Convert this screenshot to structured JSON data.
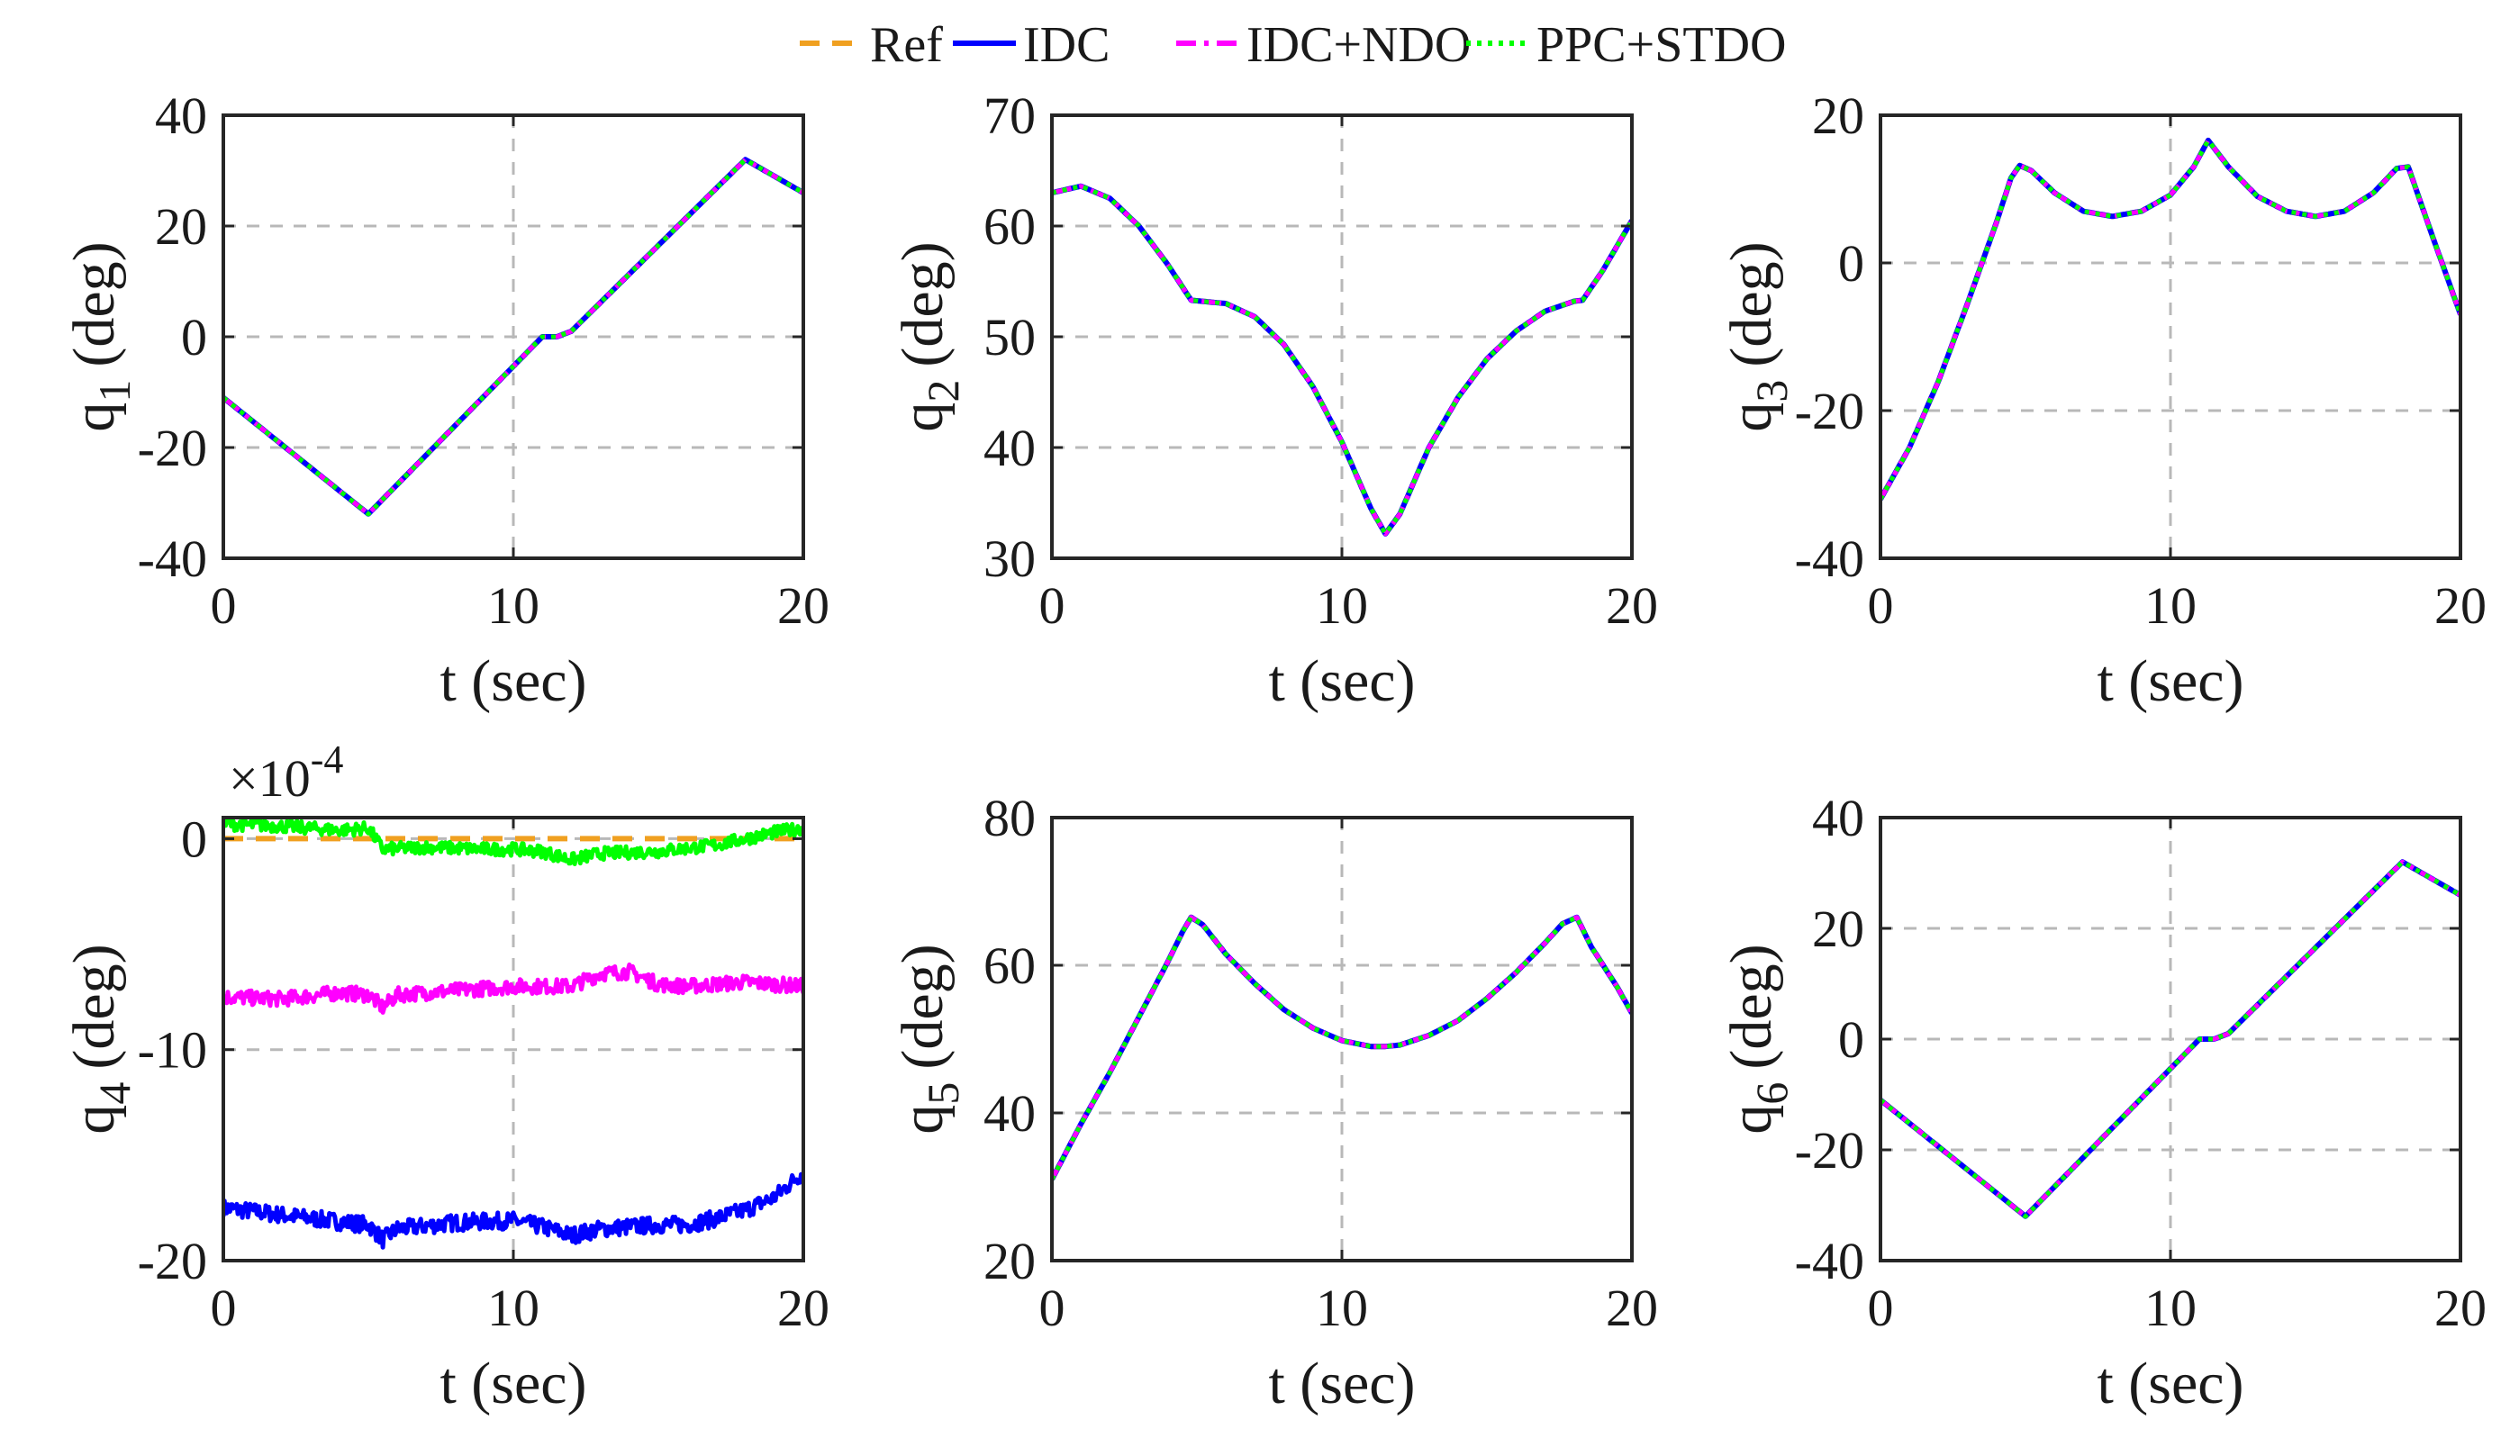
{
  "legend": {
    "position": "top-center",
    "entries": [
      {
        "label": "Ref",
        "color": "#F0A020",
        "dash": "dashed"
      },
      {
        "label": "IDC",
        "color": "#0000FF",
        "dash": "solid"
      },
      {
        "label": "IDC+NDO",
        "color": "#FF00FF",
        "dash": "dashdot"
      },
      {
        "label": "PPC+STDO",
        "color": "#00FF00",
        "dash": "dotted"
      }
    ]
  },
  "chart_data": [
    {
      "type": "line",
      "id": "q1",
      "ylabel": "q",
      "ylabel_sub": "1",
      "ylabel_unit": "(deg)",
      "xlabel": "t (sec)",
      "xlim": [
        0,
        20
      ],
      "ylim": [
        -40,
        40
      ],
      "xticks": [
        "0",
        "10",
        "20"
      ],
      "xtick_values": [
        0,
        10,
        20
      ],
      "yticks": [
        "-40",
        "-20",
        "0",
        "20",
        "40"
      ],
      "ytick_values": [
        -40,
        -20,
        0,
        20,
        40
      ],
      "grid": true,
      "series": [
        {
          "name": "Ref",
          "x": [
            0,
            5,
            11,
            11.5,
            12,
            18,
            20
          ],
          "y": [
            -11,
            -32,
            0,
            0,
            1,
            32,
            26
          ]
        },
        {
          "name": "IDC",
          "x": [
            0,
            5,
            11,
            11.5,
            12,
            18,
            20
          ],
          "y": [
            -11,
            -32,
            0,
            0,
            1,
            32,
            26
          ]
        },
        {
          "name": "IDC+NDO",
          "x": [
            0,
            5,
            11,
            11.5,
            12,
            18,
            20
          ],
          "y": [
            -11,
            -32,
            0,
            0,
            1,
            32,
            26
          ]
        },
        {
          "name": "PPC+STDO",
          "x": [
            0,
            5,
            11,
            11.5,
            12,
            18,
            20
          ],
          "y": [
            -11,
            -32,
            0,
            0,
            1,
            32,
            26
          ]
        }
      ]
    },
    {
      "type": "line",
      "id": "q2",
      "ylabel": "q",
      "ylabel_sub": "2",
      "ylabel_unit": "(deg)",
      "xlabel": "t (sec)",
      "xlim": [
        0,
        20
      ],
      "ylim": [
        30,
        70
      ],
      "xticks": [
        "0",
        "10",
        "20"
      ],
      "xtick_values": [
        0,
        10,
        20
      ],
      "yticks": [
        "30",
        "40",
        "50",
        "60",
        "70"
      ],
      "ytick_values": [
        30,
        40,
        50,
        60,
        70
      ],
      "grid": true,
      "series": [
        {
          "name": "Ref",
          "x": [
            0,
            1,
            2,
            3,
            4,
            4.8,
            6,
            7,
            8,
            9,
            10,
            11,
            11.5,
            12,
            13,
            14,
            15,
            16,
            17,
            18,
            18.3,
            19,
            20
          ],
          "y": [
            63,
            63.6,
            62.5,
            60,
            56.5,
            53.3,
            53,
            51.8,
            49.3,
            45.5,
            40.5,
            34.5,
            32.2,
            34,
            40,
            44.5,
            48,
            50.5,
            52.3,
            53.2,
            53.3,
            56,
            60.5
          ]
        },
        {
          "name": "IDC",
          "x": [
            0,
            1,
            2,
            3,
            4,
            4.8,
            6,
            7,
            8,
            9,
            10,
            11,
            11.5,
            12,
            13,
            14,
            15,
            16,
            17,
            18,
            18.3,
            19,
            20
          ],
          "y": [
            63,
            63.6,
            62.5,
            60,
            56.5,
            53.3,
            53,
            51.8,
            49.3,
            45.5,
            40.5,
            34.5,
            32.2,
            34,
            40,
            44.5,
            48,
            50.5,
            52.3,
            53.2,
            53.3,
            56,
            60.5
          ]
        },
        {
          "name": "IDC+NDO",
          "x": [
            0,
            1,
            2,
            3,
            4,
            4.8,
            6,
            7,
            8,
            9,
            10,
            11,
            11.5,
            12,
            13,
            14,
            15,
            16,
            17,
            18,
            18.3,
            19,
            20
          ],
          "y": [
            63,
            63.6,
            62.5,
            60,
            56.5,
            53.3,
            53,
            51.8,
            49.3,
            45.5,
            40.5,
            34.5,
            32.2,
            34,
            40,
            44.5,
            48,
            50.5,
            52.3,
            53.2,
            53.3,
            56,
            60.5
          ]
        },
        {
          "name": "PPC+STDO",
          "x": [
            0,
            1,
            2,
            3,
            4,
            4.8,
            6,
            7,
            8,
            9,
            10,
            11,
            11.5,
            12,
            13,
            14,
            15,
            16,
            17,
            18,
            18.3,
            19,
            20
          ],
          "y": [
            63,
            63.6,
            62.5,
            60,
            56.5,
            53.3,
            53,
            51.8,
            49.3,
            45.5,
            40.5,
            34.5,
            32.2,
            34,
            40,
            44.5,
            48,
            50.5,
            52.3,
            53.2,
            53.3,
            56,
            60.5
          ]
        }
      ]
    },
    {
      "type": "line",
      "id": "q3",
      "ylabel": "q",
      "ylabel_sub": "3",
      "ylabel_unit": "(deg)",
      "xlabel": "t (sec)",
      "xlim": [
        0,
        20
      ],
      "ylim": [
        -40,
        20
      ],
      "xticks": [
        "0",
        "10",
        "20"
      ],
      "xtick_values": [
        0,
        10,
        20
      ],
      "yticks": [
        "-40",
        "-20",
        "0",
        "20"
      ],
      "ytick_values": [
        -40,
        -20,
        0,
        20
      ],
      "grid": true,
      "series": [
        {
          "name": "Ref",
          "x": [
            0,
            1,
            2,
            3,
            4,
            4.5,
            4.8,
            5.2,
            6,
            7,
            8,
            9,
            10,
            10.8,
            11.3,
            12,
            13,
            14,
            15,
            16,
            17,
            17.8,
            18.2,
            19,
            20
          ],
          "y": [
            -32,
            -25,
            -16,
            -5.5,
            5.5,
            11.5,
            13.2,
            12.5,
            9.5,
            7,
            6.3,
            7,
            9.2,
            13,
            16.6,
            13,
            9,
            7,
            6.3,
            7,
            9.5,
            12.8,
            13,
            4,
            -7
          ]
        },
        {
          "name": "IDC",
          "x": [
            0,
            1,
            2,
            3,
            4,
            4.5,
            4.8,
            5.2,
            6,
            7,
            8,
            9,
            10,
            10.8,
            11.3,
            12,
            13,
            14,
            15,
            16,
            17,
            17.8,
            18.2,
            19,
            20
          ],
          "y": [
            -32,
            -25,
            -16,
            -5.5,
            5.5,
            11.5,
            13.2,
            12.5,
            9.5,
            7,
            6.3,
            7,
            9.2,
            13,
            16.6,
            13,
            9,
            7,
            6.3,
            7,
            9.5,
            12.8,
            13,
            4,
            -7
          ]
        },
        {
          "name": "IDC+NDO",
          "x": [
            0,
            1,
            2,
            3,
            4,
            4.5,
            4.8,
            5.2,
            6,
            7,
            8,
            9,
            10,
            10.8,
            11.3,
            12,
            13,
            14,
            15,
            16,
            17,
            17.8,
            18.2,
            19,
            20
          ],
          "y": [
            -32,
            -25,
            -16,
            -5.5,
            5.5,
            11.5,
            13.2,
            12.5,
            9.5,
            7,
            6.3,
            7,
            9.2,
            13,
            16.6,
            13,
            9,
            7,
            6.3,
            7,
            9.5,
            12.8,
            13,
            4,
            -7
          ]
        },
        {
          "name": "PPC+STDO",
          "x": [
            0,
            1,
            2,
            3,
            4,
            4.5,
            4.8,
            5.2,
            6,
            7,
            8,
            9,
            10,
            10.8,
            11.3,
            12,
            13,
            14,
            15,
            16,
            17,
            17.8,
            18.2,
            19,
            20
          ],
          "y": [
            -32,
            -25,
            -16,
            -5.5,
            5.5,
            11.5,
            13.2,
            12.5,
            9.5,
            7,
            6.3,
            7,
            9.2,
            13,
            16.6,
            13,
            9,
            7,
            6.3,
            7,
            9.5,
            12.8,
            13,
            4,
            -7
          ]
        }
      ]
    },
    {
      "type": "line",
      "id": "q4",
      "ylabel": "q",
      "ylabel_sub": "4",
      "ylabel_unit": "(deg)",
      "xlabel": "t (sec)",
      "xlim": [
        0,
        20
      ],
      "ylim": [
        -20,
        1
      ],
      "exponent_label": "×10",
      "exponent_power": "-4",
      "xticks": [
        "0",
        "10",
        "20"
      ],
      "xtick_values": [
        0,
        10,
        20
      ],
      "yticks": [
        "-20",
        "-10",
        "0"
      ],
      "ytick_values": [
        -20,
        -10,
        0
      ],
      "grid": true,
      "series": [
        {
          "name": "Ref",
          "x": [
            0,
            20
          ],
          "y": [
            0,
            0
          ],
          "noise": 0
        },
        {
          "name": "IDC",
          "x": [
            0,
            3,
            5,
            5.5,
            6,
            8,
            10,
            11,
            12,
            13,
            15,
            16,
            17,
            18,
            19,
            20
          ],
          "y": [
            -17.5,
            -18,
            -18.3,
            -19,
            -18.5,
            -18.2,
            -18.1,
            -18.4,
            -18.8,
            -18.5,
            -18.3,
            -18.3,
            -18,
            -17.6,
            -17,
            -15.8
          ],
          "noise": 0.8
        },
        {
          "name": "IDC+NDO",
          "x": [
            0,
            2,
            4,
            5,
            5.5,
            6,
            8,
            10,
            12,
            13,
            14,
            15,
            16,
            18,
            20
          ],
          "y": [
            -7.5,
            -7.6,
            -7.3,
            -7.4,
            -8,
            -7.4,
            -7.2,
            -7,
            -7,
            -6.4,
            -6.3,
            -6.9,
            -7,
            -6.8,
            -7
          ],
          "noise": 0.7
        },
        {
          "name": "PPC+STDO",
          "x": [
            0,
            2,
            4,
            5,
            5.5,
            7,
            9,
            10,
            11,
            12,
            13,
            15,
            17,
            19,
            20
          ],
          "y": [
            0.7,
            0.6,
            0.4,
            0.5,
            -0.5,
            -0.4,
            -0.5,
            -0.5,
            -0.6,
            -1,
            -0.7,
            -0.6,
            -0.3,
            0.3,
            0.5
          ],
          "noise": 0.6
        }
      ]
    },
    {
      "type": "line",
      "id": "q5",
      "ylabel": "q",
      "ylabel_sub": "5",
      "ylabel_unit": "(deg)",
      "xlabel": "t (sec)",
      "xlim": [
        0,
        20
      ],
      "ylim": [
        20,
        80
      ],
      "xticks": [
        "0",
        "10",
        "20"
      ],
      "xtick_values": [
        0,
        10,
        20
      ],
      "yticks": [
        "20",
        "40",
        "60",
        "80"
      ],
      "ytick_values": [
        20,
        40,
        60,
        80
      ],
      "grid": true,
      "series": [
        {
          "name": "Ref",
          "x": [
            0,
            1,
            2,
            3,
            4,
            4.5,
            4.8,
            5.2,
            6,
            7,
            8,
            9,
            10,
            11,
            11.5,
            12,
            13,
            14,
            15,
            16,
            17,
            17.6,
            18.1,
            18.6,
            19.5,
            20
          ],
          "y": [
            31,
            38.5,
            45.5,
            53,
            60.5,
            64.5,
            66.5,
            65.5,
            61.5,
            57.5,
            54,
            51.5,
            49.8,
            49,
            49,
            49.2,
            50.5,
            52.5,
            55.5,
            59,
            63,
            65.6,
            66.5,
            62.5,
            57,
            53.5
          ]
        },
        {
          "name": "IDC",
          "x": [
            0,
            1,
            2,
            3,
            4,
            4.5,
            4.8,
            5.2,
            6,
            7,
            8,
            9,
            10,
            11,
            11.5,
            12,
            13,
            14,
            15,
            16,
            17,
            17.6,
            18.1,
            18.6,
            19.5,
            20
          ],
          "y": [
            31,
            38.5,
            45.5,
            53,
            60.5,
            64.5,
            66.5,
            65.5,
            61.5,
            57.5,
            54,
            51.5,
            49.8,
            49,
            49,
            49.2,
            50.5,
            52.5,
            55.5,
            59,
            63,
            65.6,
            66.5,
            62.5,
            57,
            53.5
          ]
        },
        {
          "name": "IDC+NDO",
          "x": [
            0,
            1,
            2,
            3,
            4,
            4.5,
            4.8,
            5.2,
            6,
            7,
            8,
            9,
            10,
            11,
            11.5,
            12,
            13,
            14,
            15,
            16,
            17,
            17.6,
            18.1,
            18.6,
            19.5,
            20
          ],
          "y": [
            31,
            38.5,
            45.5,
            53,
            60.5,
            64.5,
            66.5,
            65.5,
            61.5,
            57.5,
            54,
            51.5,
            49.8,
            49,
            49,
            49.2,
            50.5,
            52.5,
            55.5,
            59,
            63,
            65.6,
            66.5,
            62.5,
            57,
            53.5
          ]
        },
        {
          "name": "PPC+STDO",
          "x": [
            0,
            1,
            2,
            3,
            4,
            4.5,
            4.8,
            5.2,
            6,
            7,
            8,
            9,
            10,
            11,
            11.5,
            12,
            13,
            14,
            15,
            16,
            17,
            17.6,
            18.1,
            18.6,
            19.5,
            20
          ],
          "y": [
            31,
            38.5,
            45.5,
            53,
            60.5,
            64.5,
            66.5,
            65.5,
            61.5,
            57.5,
            54,
            51.5,
            49.8,
            49,
            49,
            49.2,
            50.5,
            52.5,
            55.5,
            59,
            63,
            65.6,
            66.5,
            62.5,
            57,
            53.5
          ]
        }
      ]
    },
    {
      "type": "line",
      "id": "q6",
      "ylabel": "q",
      "ylabel_sub": "6",
      "ylabel_unit": "(deg)",
      "xlabel": "t (sec)",
      "xlim": [
        0,
        20
      ],
      "ylim": [
        -40,
        40
      ],
      "xticks": [
        "0",
        "10",
        "20"
      ],
      "xtick_values": [
        0,
        10,
        20
      ],
      "yticks": [
        "-40",
        "-20",
        "0",
        "20",
        "40"
      ],
      "ytick_values": [
        -40,
        -20,
        0,
        20,
        40
      ],
      "grid": true,
      "series": [
        {
          "name": "Ref",
          "x": [
            0,
            5,
            11,
            11.5,
            12,
            18,
            20
          ],
          "y": [
            -11,
            -32,
            0,
            0,
            1,
            32,
            26
          ]
        },
        {
          "name": "IDC",
          "x": [
            0,
            5,
            11,
            11.5,
            12,
            18,
            20
          ],
          "y": [
            -11,
            -32,
            0,
            0,
            1,
            32,
            26
          ]
        },
        {
          "name": "IDC+NDO",
          "x": [
            0,
            5,
            11,
            11.5,
            12,
            18,
            20
          ],
          "y": [
            -11,
            -32,
            0,
            0,
            1,
            32,
            26
          ]
        },
        {
          "name": "PPC+STDO",
          "x": [
            0,
            5,
            11,
            11.5,
            12,
            18,
            20
          ],
          "y": [
            -11,
            -32,
            0,
            0,
            1,
            32,
            26
          ]
        }
      ]
    }
  ]
}
